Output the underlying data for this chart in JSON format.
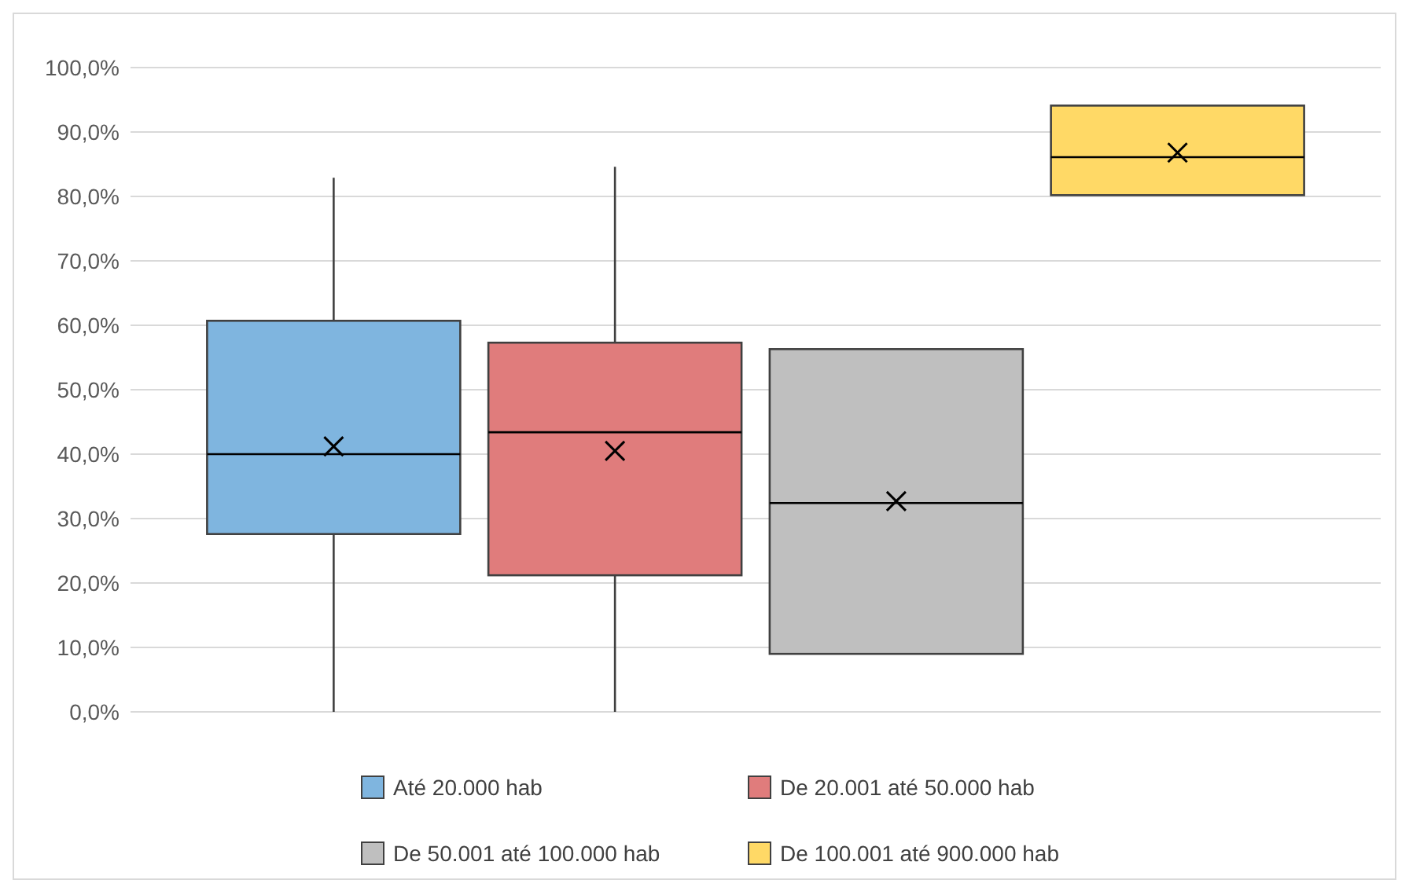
{
  "chart_data": {
    "type": "box",
    "categories": [
      null
    ],
    "series": [
      {
        "name": "Até 20.000 hab",
        "color": "#7fb5df",
        "boxes": [
          {
            "low": 0,
            "q1": 27.6,
            "median": 40.0,
            "q3": 60.7,
            "high": 82.9,
            "mean": 41.2
          }
        ]
      },
      {
        "name": "De 20.001 até 50.000 hab",
        "color": "#e07c7c",
        "boxes": [
          {
            "low": 0,
            "q1": 21.2,
            "median": 43.4,
            "q3": 57.3,
            "high": 84.6,
            "mean": 40.5
          }
        ]
      },
      {
        "name": "De 50.001 até 100.000 hab",
        "color": "#bfbfbf",
        "boxes": [
          {
            "low": 9.0,
            "q1": 9.0,
            "median": 32.4,
            "q3": 56.3,
            "high": 56.3,
            "mean": 32.7
          }
        ]
      },
      {
        "name": "De 100.001 até 900.000 hab",
        "color": "#ffd966",
        "boxes": [
          {
            "low": 80.2,
            "q1": 80.2,
            "median": 86.1,
            "q3": 94.1,
            "high": 94.1,
            "mean": 86.8
          }
        ]
      }
    ],
    "ylim": [
      0,
      100
    ],
    "yticks": [
      {
        "value": 0,
        "label": "0,0%"
      },
      {
        "value": 10,
        "label": "10,0%"
      },
      {
        "value": 20,
        "label": "20,0%"
      },
      {
        "value": 30,
        "label": "30,0%"
      },
      {
        "value": 40,
        "label": "40,0%"
      },
      {
        "value": 50,
        "label": "50,0%"
      },
      {
        "value": 60,
        "label": "60,0%"
      },
      {
        "value": 70,
        "label": "70,0%"
      },
      {
        "value": 80,
        "label": "80,0%"
      },
      {
        "value": 90,
        "label": "90,0%"
      },
      {
        "value": 100,
        "label": "100,0%"
      }
    ],
    "grid": "y",
    "legend": "bottom",
    "marker": "cross"
  }
}
